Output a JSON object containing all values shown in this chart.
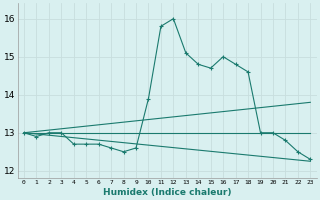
{
  "xlabel": "Humidex (Indice chaleur)",
  "x_ticks": [
    0,
    1,
    2,
    3,
    4,
    5,
    6,
    7,
    8,
    9,
    10,
    11,
    12,
    13,
    14,
    15,
    16,
    17,
    18,
    19,
    20,
    21,
    22,
    23
  ],
  "xlim": [
    -0.5,
    23.5
  ],
  "ylim": [
    11.8,
    16.4
  ],
  "yticks": [
    12,
    13,
    14,
    15,
    16
  ],
  "bg_color": "#d9f0f0",
  "grid_color": "#c8dede",
  "line_color": "#1a7a6e",
  "line1_x": [
    0,
    1,
    2,
    3,
    4,
    5,
    6,
    7,
    8,
    9,
    10,
    11,
    12,
    13,
    14,
    15,
    16,
    17,
    18,
    19,
    20,
    21,
    22,
    23
  ],
  "line1_y": [
    13.0,
    12.9,
    13.0,
    13.0,
    12.7,
    12.7,
    12.7,
    12.6,
    12.5,
    12.6,
    13.9,
    15.8,
    16.0,
    15.1,
    14.8,
    14.7,
    15.0,
    14.8,
    14.6,
    13.0,
    13.0,
    12.8,
    12.5,
    12.3
  ],
  "line2_x": [
    0,
    23
  ],
  "line2_y": [
    13.0,
    13.0
  ],
  "line3_x": [
    0,
    23
  ],
  "line3_y": [
    13.0,
    13.8
  ],
  "line4_x": [
    0,
    23
  ],
  "line4_y": [
    13.0,
    12.25
  ]
}
